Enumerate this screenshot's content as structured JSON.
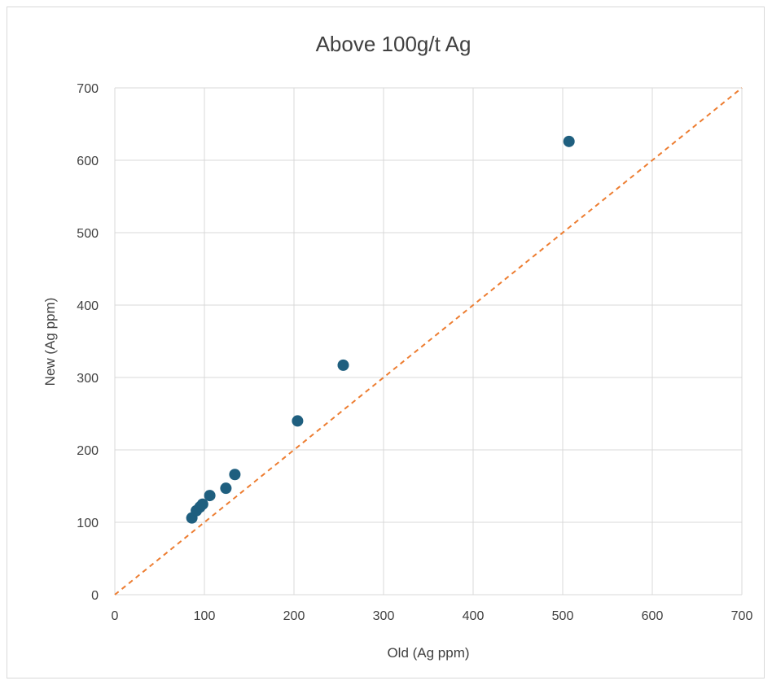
{
  "chart_data": {
    "type": "scatter",
    "title": "Above 100g/t Ag",
    "xlabel": "Old (Ag ppm)",
    "ylabel": "New (Ag ppm)",
    "xlim": [
      0,
      700
    ],
    "ylim": [
      0,
      700
    ],
    "x_ticks": [
      "0",
      "100",
      "200",
      "300",
      "400",
      "500",
      "600",
      "700"
    ],
    "y_ticks": [
      "0",
      "100",
      "200",
      "300",
      "400",
      "500",
      "600",
      "700"
    ],
    "grid": true,
    "legend": "none",
    "series": [
      {
        "color": "#1f5f7f",
        "points": [
          {
            "x": 86,
            "y": 106
          },
          {
            "x": 91,
            "y": 116
          },
          {
            "x": 95,
            "y": 121
          },
          {
            "x": 98,
            "y": 125
          },
          {
            "x": 106,
            "y": 137
          },
          {
            "x": 124,
            "y": 147
          },
          {
            "x": 134,
            "y": 166
          },
          {
            "x": 204,
            "y": 240
          },
          {
            "x": 255,
            "y": 317
          },
          {
            "x": 507,
            "y": 626
          }
        ]
      }
    ],
    "reference_line": {
      "from": [
        0,
        0
      ],
      "to": [
        700,
        700
      ],
      "style": "dashed",
      "color": "#ed7d31"
    }
  }
}
